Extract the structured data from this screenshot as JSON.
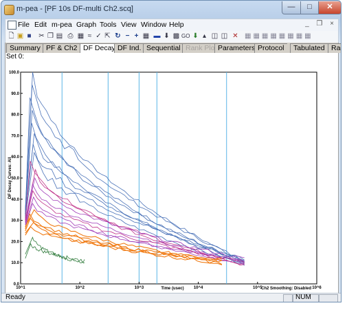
{
  "window": {
    "title": "m-pea - [PF 10s DF-multi Ch2.scq]"
  },
  "menu": [
    "File",
    "Edit",
    "m-pea",
    "Graph",
    "Tools",
    "View",
    "Window",
    "Help"
  ],
  "mdi_controls": "_ ❐ ×",
  "tabs": [
    {
      "label": "Summary",
      "state": "normal"
    },
    {
      "label": "PF & Ch2",
      "state": "normal"
    },
    {
      "label": "DF Decay",
      "state": "active"
    },
    {
      "label": "DF Ind.",
      "state": "normal"
    },
    {
      "label": "Sequential",
      "state": "normal"
    },
    {
      "label": "Rank Plots",
      "state": "disabled"
    },
    {
      "label": "Parameters",
      "state": "normal"
    },
    {
      "label": "Protocol",
      "state": "normal"
    },
    {
      "label": "Tabulated",
      "state": "normal"
    },
    {
      "label": "Radar",
      "state": "normal"
    }
  ],
  "set_label": "Set 0:",
  "status": {
    "left": "Ready",
    "num": "NUM"
  },
  "chart_data": {
    "type": "line",
    "ylabel": "DF Decay Curves: All",
    "xlabel": "Time (usec)",
    "smoothing_note": "Ch2 Smoothing: Disabled",
    "x_scale": "log",
    "xlim": [
      10,
      1000000
    ],
    "ylim": [
      0,
      100
    ],
    "y_ticks": [
      "0.0",
      "10.0",
      "20.0",
      "30.0",
      "40.0",
      "50.0",
      "60.0",
      "70.0",
      "80.0",
      "90.0",
      "100.0"
    ],
    "x_ticks": [
      "10^1",
      "10^2",
      "10^3",
      "10^4",
      "10^5",
      "10^6"
    ],
    "vertical_markers": [
      50,
      300,
      1000,
      2000,
      30000
    ],
    "colors": {
      "blue": "#4a72b8",
      "purple": "#a03cb8",
      "magenta": "#c0348a",
      "orange": "#f07c16",
      "green": "#2e7a3a",
      "marker": "#5ab4e6"
    },
    "series": [
      {
        "group": "blue",
        "peak": 100,
        "x0": 12,
        "y0": 35
      },
      {
        "group": "blue",
        "peak": 94,
        "x0": 12,
        "y0": 34
      },
      {
        "group": "blue",
        "peak": 88,
        "x0": 12,
        "y0": 33
      },
      {
        "group": "blue",
        "peak": 82,
        "x0": 12,
        "y0": 33
      },
      {
        "group": "blue",
        "peak": 76,
        "x0": 12,
        "y0": 32
      },
      {
        "group": "blue",
        "peak": 71,
        "x0": 12,
        "y0": 32
      },
      {
        "group": "blue",
        "peak": 66,
        "x0": 12,
        "y0": 31
      },
      {
        "group": "blue",
        "peak": 62,
        "x0": 12,
        "y0": 31
      },
      {
        "group": "magenta",
        "peak": 58,
        "x0": 12,
        "y0": 30
      },
      {
        "group": "magenta",
        "peak": 54,
        "x0": 12,
        "y0": 30
      },
      {
        "group": "purple",
        "peak": 50,
        "x0": 12,
        "y0": 29
      },
      {
        "group": "purple",
        "peak": 47,
        "x0": 12,
        "y0": 29
      },
      {
        "group": "magenta",
        "peak": 44,
        "x0": 12,
        "y0": 28
      },
      {
        "group": "purple",
        "peak": 41,
        "x0": 12,
        "y0": 28
      },
      {
        "group": "purple",
        "peak": 38,
        "x0": 12,
        "y0": 27
      },
      {
        "group": "orange",
        "peak": 35,
        "x0": 12,
        "y0": 27
      },
      {
        "group": "orange",
        "peak": 33,
        "x0": 12,
        "y0": 26
      },
      {
        "group": "orange",
        "peak": 31,
        "x0": 12,
        "y0": 25
      },
      {
        "group": "orange",
        "peak": 29,
        "x0": 12,
        "y0": 24
      },
      {
        "group": "orange",
        "peak": 27,
        "x0": 12,
        "y0": 23
      },
      {
        "group": "green",
        "peak": 22,
        "x0": 12,
        "y0": 14
      },
      {
        "group": "green",
        "peak": 19,
        "x0": 12,
        "y0": 12
      }
    ]
  }
}
